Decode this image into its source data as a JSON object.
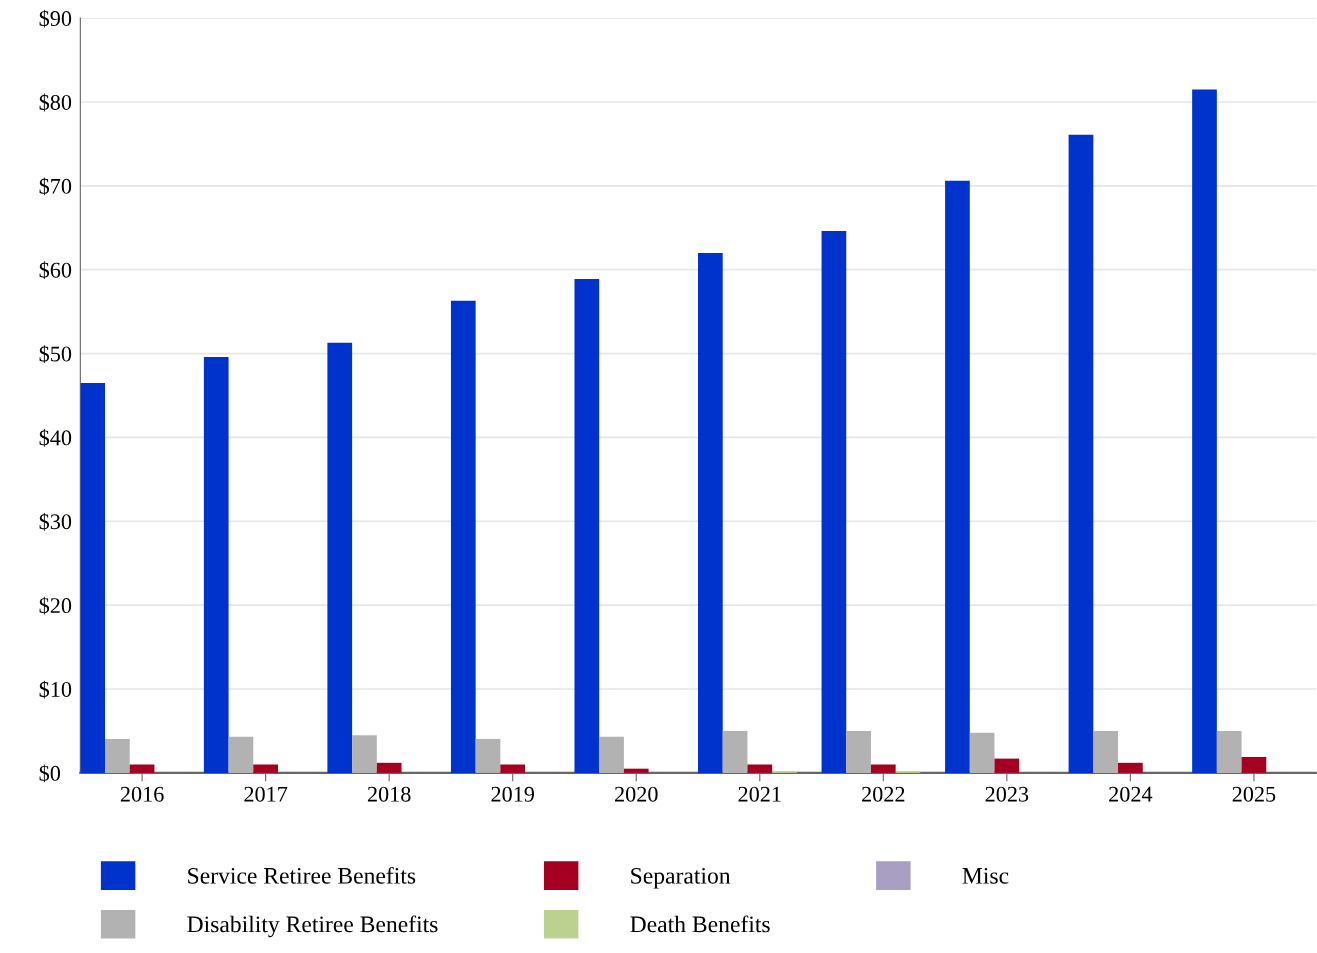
{
  "chart_data": {
    "type": "bar",
    "categories": [
      "2016",
      "2017",
      "2018",
      "2019",
      "2020",
      "2021",
      "2022",
      "2023",
      "2024",
      "2025"
    ],
    "series": [
      {
        "name": "Service Retiree Benefits",
        "color": "#0033cc",
        "values": [
          46.5,
          49.6,
          51.3,
          56.3,
          58.9,
          62.0,
          64.6,
          70.6,
          76.1,
          81.5
        ]
      },
      {
        "name": "Disability Retiree Benefits",
        "color": "#b2b2b2",
        "values": [
          4.05,
          4.3,
          4.5,
          4.05,
          4.3,
          5.0,
          5.0,
          4.8,
          5.0,
          5.0
        ]
      },
      {
        "name": "Separation",
        "color": "#a50021",
        "values": [
          1.0,
          1.0,
          1.2,
          1.0,
          0.5,
          1.0,
          1.0,
          1.7,
          1.2,
          1.9
        ]
      },
      {
        "name": "Death Benefits",
        "color": "#bcd18f",
        "values": [
          0,
          0,
          0,
          0,
          0,
          0.2,
          0.2,
          0,
          0,
          0
        ]
      },
      {
        "name": "Misc",
        "color": "#a99fc2",
        "values": [
          0,
          0,
          0,
          0,
          0,
          0,
          0,
          0,
          0,
          0
        ]
      }
    ],
    "ylim": [
      0,
      90
    ],
    "yticks": [
      {
        "value": 0,
        "label": "$0"
      },
      {
        "value": 10,
        "label": "$10"
      },
      {
        "value": 20,
        "label": "$20"
      },
      {
        "value": 30,
        "label": "$30"
      },
      {
        "value": 40,
        "label": "$40"
      },
      {
        "value": 50,
        "label": "$50"
      },
      {
        "value": 60,
        "label": "$60"
      },
      {
        "value": 70,
        "label": "$70"
      },
      {
        "value": 80,
        "label": "$80"
      },
      {
        "value": 90,
        "label": "$90"
      }
    ],
    "grid": "y",
    "legend": "bottom"
  }
}
